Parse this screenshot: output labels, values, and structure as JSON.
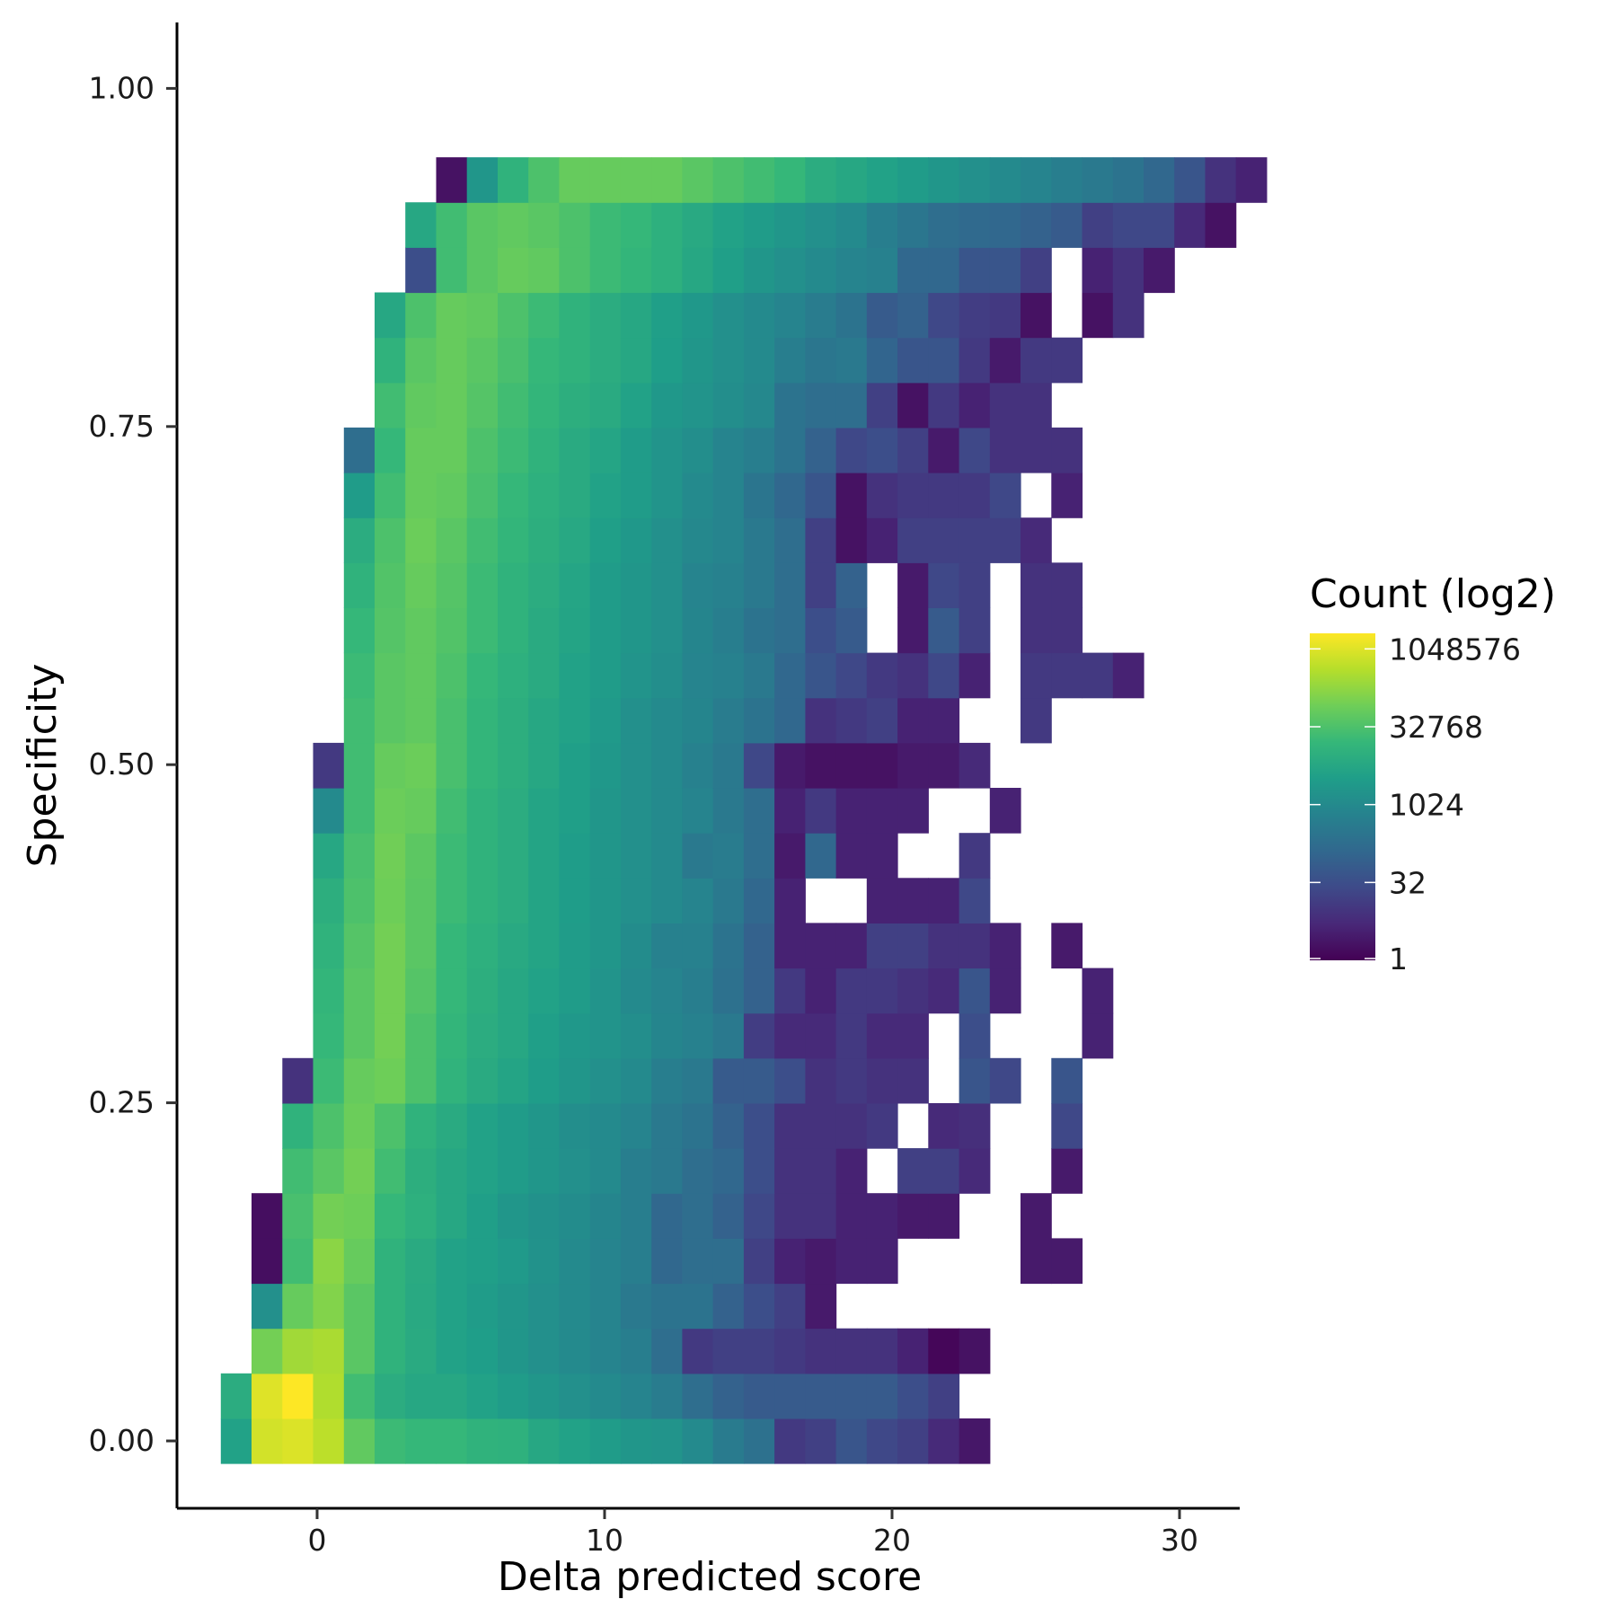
{
  "chart_data": {
    "type": "heatmap",
    "xlabel": "Delta predicted score",
    "ylabel": "Specificity",
    "x_ticks": [
      0,
      10,
      20,
      30
    ],
    "x_tick_labels": [
      "0",
      "10",
      "20",
      "30"
    ],
    "y_ticks": [
      0,
      0.25,
      0.5,
      0.75,
      1.0
    ],
    "y_tick_labels": [
      "0.00",
      "0.25",
      "0.50",
      "0.75",
      "1.00"
    ],
    "xlim": [
      -5,
      32
    ],
    "ylim": [
      -0.05,
      1.05
    ],
    "bin": {
      "x0": -3.35,
      "dx": 1.07,
      "y0": 0.0,
      "dy": 0.0333
    },
    "grid": false,
    "legend": {
      "title": "Count (log2)",
      "position": "right",
      "scale": "log2",
      "tick_values": [
        1,
        32,
        1024,
        32768,
        1048576
      ],
      "tick_labels": [
        "1",
        "32",
        "1024",
        "32768",
        "1048576"
      ],
      "min": 1,
      "max": 2097152
    },
    "colormap": "viridis",
    "colors": [
      "#440154",
      "#482878",
      "#3e4a89",
      "#31688e",
      "#26828e",
      "#1f9e89",
      "#35b779",
      "#6ece58",
      "#b5de2b",
      "#fde725"
    ],
    "rows_note": "row 0 is the bottom row (specificity ~0.00); each row lists columns starting at rows[i].c0; value = log2(count), null = empty bin",
    "rows": [
      {
        "c0": 0,
        "v": [
          12,
          19.6,
          19.9,
          18.9,
          15.8,
          14.3,
          14.0,
          14.0,
          13.5,
          13.4,
          12.5,
          12.0,
          11.5,
          11.0,
          10.8,
          10.0,
          8.7,
          7.8,
          3.5,
          4.0,
          5.5,
          4.5,
          4.0,
          2.5,
          1.3
        ]
      },
      {
        "c0": 0,
        "v": [
          13,
          20.0,
          21,
          18.5,
          14.5,
          13.0,
          12.5,
          12.5,
          12.0,
          11.5,
          11.0,
          10.5,
          10.0,
          9.5,
          8.8,
          7.5,
          6.5,
          6.0,
          6.0,
          6.0,
          6.0,
          6.0,
          5.0,
          4.0
        ]
      },
      {
        "c0": 1,
        "v": [
          16.5,
          18.0,
          18.3,
          15.5,
          13.5,
          12.8,
          12.0,
          11.7,
          11.0,
          10.5,
          10.0,
          9.5,
          9.0,
          7.5,
          3.5,
          4.0,
          4.0,
          3.5,
          3.0,
          3.0,
          3.0,
          2.0,
          0.3,
          1.0
        ]
      },
      {
        "c0": 1,
        "v": [
          10.5,
          16.0,
          17.0,
          15.5,
          13.5,
          12.7,
          12.0,
          11.5,
          11.0,
          10.5,
          10.0,
          9.5,
          8.5,
          8.0,
          8.0,
          6.5,
          5.0,
          4.0,
          1.5
        ]
      },
      {
        "c0": 1,
        "v": [
          0.8,
          14.5,
          17.3,
          16.0,
          13.5,
          12.8,
          12.0,
          11.8,
          11.3,
          10.7,
          10.0,
          9.5,
          9.0,
          7.0,
          7.5,
          7.5,
          4.0,
          2.0,
          1.5,
          2.0,
          2.0,
          null,
          null,
          null,
          null,
          1.5,
          1.5
        ]
      },
      {
        "c0": 1,
        "v": [
          0.8,
          14.8,
          16.5,
          16.3,
          14.0,
          13.3,
          12.5,
          11.8,
          11.0,
          10.6,
          10.2,
          9.6,
          9.0,
          7.0,
          7.5,
          6.5,
          4.5,
          3.0,
          3.0,
          2.0,
          2.0,
          1.5,
          1.5,
          null,
          null,
          1.5
        ]
      },
      {
        "c0": 2,
        "v": [
          14.5,
          15.5,
          16.5,
          14.5,
          13.2,
          12.5,
          12.0,
          11.5,
          11.0,
          10.5,
          10.0,
          9.0,
          8.5,
          7.5,
          7.0,
          5.0,
          3.0,
          3.0,
          2.0,
          null,
          4.0,
          4.0,
          2.5,
          null,
          null,
          1.5
        ]
      },
      {
        "c0": 2,
        "v": [
          13.5,
          15.0,
          16.2,
          15.0,
          13.5,
          12.8,
          12.0,
          11.5,
          11.0,
          10.3,
          10.0,
          9.5,
          8.5,
          8.0,
          6.5,
          5.0,
          3.0,
          3.0,
          3.0,
          3.5,
          null,
          2.5,
          2.8,
          null,
          null,
          4.5
        ]
      },
      {
        "c0": 2,
        "v": [
          3.0,
          14.3,
          16.0,
          16.3,
          15.0,
          13.6,
          12.8,
          12.2,
          11.6,
          11.0,
          10.5,
          10.0,
          9.0,
          8.5,
          6.0,
          6.0,
          5.0,
          3.0,
          3.5,
          3.0,
          3.0,
          null,
          5.5,
          4.5,
          null,
          5.5
        ]
      },
      {
        "c0": 3,
        "v": [
          14.0,
          15.5,
          16.5,
          15.0,
          13.8,
          13.0,
          12.5,
          11.8,
          11.2,
          10.8,
          10.3,
          9.6,
          9.2,
          8.5,
          3.8,
          2.5,
          2.5,
          3.5,
          2.5,
          2.5,
          null,
          5.0,
          null,
          null,
          null,
          2.0
        ]
      },
      {
        "c0": 3,
        "v": [
          13.8,
          15.5,
          16.5,
          15.3,
          14.0,
          13.2,
          12.5,
          12.0,
          11.5,
          10.8,
          10.0,
          9.5,
          9.0,
          7.8,
          6.5,
          3.5,
          2.0,
          3.5,
          3.5,
          3.0,
          2.5,
          5.5,
          2.0,
          null,
          null,
          2.0
        ]
      },
      {
        "c0": 3,
        "v": [
          13.5,
          15.3,
          16.5,
          15.5,
          14.0,
          13.3,
          12.7,
          12.2,
          11.5,
          11.0,
          10.2,
          9.2,
          9.2,
          8.0,
          6.5,
          2.0,
          2.0,
          2.0,
          4.0,
          4.0,
          3.0,
          3.0,
          2.0,
          null,
          1.5
        ]
      },
      {
        "c0": 3,
        "v": [
          13.2,
          15.0,
          16.3,
          15.5,
          14.3,
          13.5,
          13.0,
          12.2,
          11.6,
          11.0,
          10.5,
          10.0,
          9.5,
          8.5,
          7.0,
          2.0,
          null,
          null,
          2.0,
          2.0,
          2.0,
          4.5
        ]
      },
      {
        "c0": 3,
        "v": [
          12.5,
          14.8,
          16.4,
          15.6,
          14.3,
          13.5,
          13.0,
          12.2,
          11.6,
          11.0,
          10.5,
          10.0,
          8.5,
          8.8,
          7.5,
          1.5,
          7.0,
          2.0,
          2.0,
          null,
          null,
          3.5
        ]
      },
      {
        "c0": 3,
        "v": [
          10.0,
          14.5,
          16.2,
          16.0,
          14.5,
          13.5,
          13.0,
          12.2,
          11.8,
          11.0,
          10.5,
          10.0,
          9.5,
          8.5,
          7.5,
          2.0,
          3.5,
          2.0,
          2.0,
          2.0,
          null,
          null,
          2.0
        ]
      },
      {
        "c0": 3,
        "v": [
          3.5,
          14.5,
          16.0,
          16.2,
          14.8,
          13.8,
          13.2,
          12.5,
          11.8,
          11.2,
          10.5,
          10.0,
          9.2,
          8.5,
          4.5,
          1.5,
          1.0,
          1.0,
          1.0,
          1.5,
          1.5,
          2.5
        ]
      },
      {
        "c0": 4,
        "v": [
          14.5,
          15.5,
          15.8,
          14.8,
          13.8,
          13.2,
          12.5,
          12.0,
          11.3,
          10.5,
          10.0,
          9.6,
          8.8,
          8.0,
          7.0,
          3.0,
          3.5,
          4.0,
          2.0,
          2.0,
          null,
          null,
          3.5
        ]
      },
      {
        "c0": 4,
        "v": [
          14.3,
          15.5,
          15.8,
          15.0,
          14.0,
          13.3,
          12.8,
          12.0,
          11.5,
          10.8,
          10.3,
          9.5,
          9.2,
          8.5,
          7.0,
          5.5,
          4.5,
          3.5,
          3.0,
          4.5,
          2.0,
          null,
          3.5,
          3.5,
          3.5,
          2.0
        ]
      },
      {
        "c0": 4,
        "v": [
          14.0,
          15.3,
          15.8,
          15.2,
          14.3,
          13.5,
          12.8,
          12.2,
          11.5,
          11.0,
          10.5,
          9.6,
          9.0,
          8.0,
          7.5,
          5.0,
          6.0,
          null,
          1.5,
          6.0,
          4.0,
          null,
          3.0,
          3.0
        ]
      },
      {
        "c0": 4,
        "v": [
          13.5,
          15.2,
          16.0,
          15.3,
          14.3,
          13.5,
          13.0,
          12.3,
          11.5,
          11.0,
          10.5,
          9.5,
          9.2,
          8.5,
          7.5,
          4.0,
          6.5,
          null,
          1.5,
          4.5,
          4.0,
          null,
          3.0,
          3.0
        ]
      },
      {
        "c0": 4,
        "v": [
          13.0,
          15.0,
          16.2,
          15.5,
          14.5,
          13.8,
          13.2,
          12.6,
          11.8,
          11.2,
          10.5,
          9.8,
          9.5,
          8.5,
          7.5,
          4.0,
          1.0,
          2.0,
          4.0,
          4.0,
          4.0,
          4.0,
          2.5
        ]
      },
      {
        "c0": 4,
        "v": [
          11.5,
          14.5,
          16.0,
          15.8,
          14.8,
          14.0,
          13.3,
          12.8,
          12.0,
          11.5,
          10.8,
          10.0,
          9.5,
          8.2,
          7.0,
          5.5,
          1.0,
          3.0,
          3.5,
          3.5,
          3.5,
          4.5,
          null,
          2.0
        ]
      },
      {
        "c0": 4,
        "v": [
          7.5,
          14.0,
          16.0,
          16.0,
          15.0,
          14.3,
          13.5,
          12.8,
          12.3,
          11.5,
          10.8,
          10.3,
          9.5,
          9.0,
          8.0,
          6.5,
          4.5,
          5.0,
          4.0,
          1.5,
          4.5,
          3.0,
          3.0,
          3.0
        ]
      },
      {
        "c0": 5,
        "v": [
          14.5,
          15.8,
          16.0,
          15.3,
          14.5,
          13.8,
          13.2,
          12.8,
          12.0,
          11.2,
          10.8,
          10.3,
          9.8,
          8.0,
          7.5,
          7.5,
          4.0,
          1.0,
          3.5,
          2.0,
          3.0,
          3.0
        ]
      },
      {
        "c0": 5,
        "v": [
          13.5,
          15.5,
          16.0,
          15.5,
          14.8,
          14.0,
          13.5,
          13.0,
          12.5,
          11.7,
          11.0,
          10.5,
          10.0,
          9.0,
          8.3,
          8.5,
          6.8,
          5.5,
          5.5,
          3.5,
          1.5,
          3.5,
          3.5
        ]
      },
      {
        "c0": 5,
        "v": [
          12.5,
          15.0,
          16.0,
          15.8,
          15.0,
          14.3,
          13.5,
          13.0,
          12.5,
          11.8,
          11.2,
          10.5,
          10.0,
          9.5,
          8.8,
          8.0,
          6.0,
          6.5,
          4.5,
          3.8,
          3.5,
          1.0,
          null,
          1.0,
          3.0
        ]
      },
      {
        "c0": 6,
        "v": [
          5.0,
          14.5,
          15.5,
          16.0,
          15.8,
          15.0,
          14.3,
          13.8,
          13.3,
          12.5,
          11.8,
          11.0,
          10.5,
          10.0,
          9.5,
          9.2,
          7.0,
          7.0,
          5.5,
          5.5,
          4.0,
          null,
          2.0,
          3.0,
          1.5
        ]
      },
      {
        "c0": 6,
        "v": [
          12.5,
          14.5,
          15.5,
          15.8,
          15.5,
          15.0,
          14.3,
          14.0,
          13.3,
          12.7,
          12.0,
          11.5,
          11.0,
          10.5,
          10.0,
          9.0,
          8.3,
          7.5,
          7.2,
          7.0,
          6.5,
          6.0,
          4.0,
          4.5,
          4.5,
          2.5,
          1.0
        ]
      },
      {
        "c0": 7,
        "v": [
          1.0,
          11.0,
          13.5,
          15.0,
          16.0,
          16.0,
          16.0,
          16.0,
          15.5,
          15.0,
          14.5,
          14.0,
          13.0,
          12.5,
          12.0,
          11.5,
          11.0,
          10.5,
          10.0,
          9.5,
          9.0,
          8.5,
          8.0,
          7.0,
          5.5,
          3.0,
          2.0
        ]
      }
    ]
  }
}
